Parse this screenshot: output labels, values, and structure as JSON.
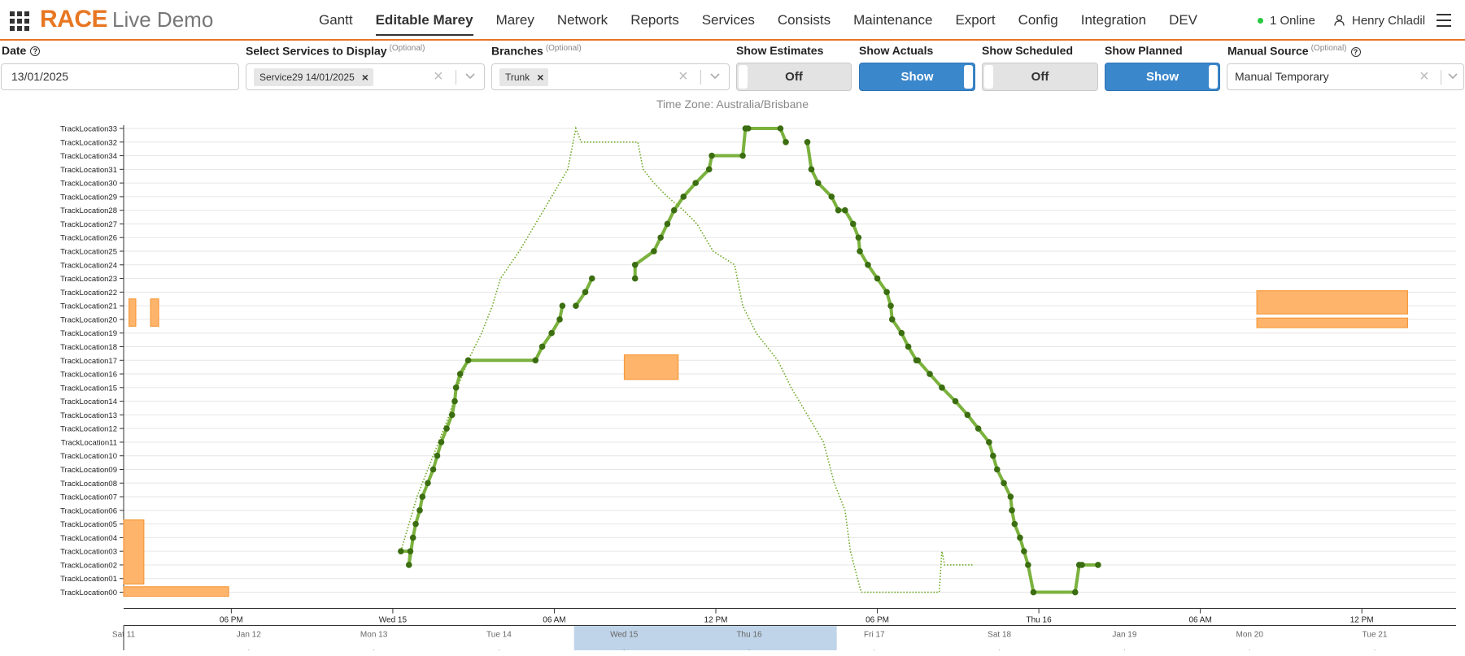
{
  "header": {
    "brand_main": "RACE",
    "brand_sub": "Live Demo",
    "nav": [
      {
        "label": "Gantt",
        "active": false
      },
      {
        "label": "Editable Marey",
        "active": true
      },
      {
        "label": "Marey",
        "active": false
      },
      {
        "label": "Network",
        "active": false
      },
      {
        "label": "Reports",
        "active": false
      },
      {
        "label": "Services",
        "active": false
      },
      {
        "label": "Consists",
        "active": false
      },
      {
        "label": "Maintenance",
        "active": false
      },
      {
        "label": "Export",
        "active": false
      },
      {
        "label": "Config",
        "active": false
      },
      {
        "label": "Integration",
        "active": false
      },
      {
        "label": "DEV",
        "active": false
      }
    ],
    "online_text": "1 Online",
    "user_name": "Henry Chladil",
    "accent_color": "#e87722"
  },
  "filters": {
    "date": {
      "label": "Date",
      "value": "13/01/2025"
    },
    "services": {
      "label": "Select Services to Display",
      "optional": "(Optional)",
      "chip": "Service29 14/01/2025"
    },
    "branches": {
      "label": "Branches",
      "optional": "(Optional)",
      "chip": "Trunk"
    },
    "estimates": {
      "label": "Show Estimates",
      "value": "Off"
    },
    "actuals": {
      "label": "Show Actuals",
      "value": "Show"
    },
    "scheduled": {
      "label": "Show Scheduled",
      "value": "Off"
    },
    "planned": {
      "label": "Show Planned",
      "value": "Show"
    },
    "manual_source": {
      "label": "Manual Source",
      "optional": "(Optional)",
      "value": "Manual Temporary"
    }
  },
  "timezone": "Time Zone: Australia/Brisbane",
  "chart_data": {
    "type": "line",
    "y_locations": [
      "TrackLocation00",
      "TrackLocation01",
      "TrackLocation02",
      "TrackLocation03",
      "TrackLocation04",
      "TrackLocation05",
      "TrackLocation06",
      "TrackLocation07",
      "TrackLocation08",
      "TrackLocation09",
      "TrackLocation10",
      "TrackLocation11",
      "TrackLocation12",
      "TrackLocation13",
      "TrackLocation14",
      "TrackLocation15",
      "TrackLocation16",
      "TrackLocation17",
      "TrackLocation18",
      "TrackLocation19",
      "TrackLocation20",
      "TrackLocation21",
      "TrackLocation22",
      "TrackLocation23",
      "TrackLocation24",
      "TrackLocation25",
      "TrackLocation26",
      "TrackLocation27",
      "TrackLocation28",
      "TrackLocation29",
      "TrackLocation30",
      "TrackLocation31",
      "TrackLocation34",
      "TrackLocation32",
      "TrackLocation33"
    ],
    "x_axis_primary": {
      "ticks": [
        "06 PM",
        "Wed 15",
        "06 AM",
        "12 PM",
        "06 PM",
        "Thu 16",
        "06 AM",
        "12 PM"
      ],
      "hours": [
        18,
        24,
        30,
        36,
        42,
        48,
        54,
        60
      ]
    },
    "x_axis_overview": {
      "ticks": [
        "Sat 11",
        "Jan 12",
        "Mon 13",
        "Tue 14",
        "Wed 15",
        "Thu 16",
        "Fri 17",
        "Sat 18",
        "Jan 19",
        "Mon 20",
        "Tue 21"
      ],
      "days": [
        0,
        1,
        2,
        3,
        4,
        5,
        6,
        7,
        8,
        9,
        10
      ],
      "brush_days": [
        3.6,
        5.7
      ]
    },
    "x_domain_hours": [
      14,
      63.5
    ],
    "x_axis_reference": "hours from 14/01/2025 00:00",
    "colors": {
      "actual": "#7bb23e",
      "actual_point": "#3b6d11",
      "planned": "#6aa61f",
      "block_fill": "#ffb064",
      "block_stroke": "#f59a3b",
      "brush": "#b8cfe6"
    },
    "series": [
      {
        "name": "Actual",
        "segments": [
          [
            [
              24.3,
              3
            ],
            [
              24.65,
              3
            ],
            [
              24.6,
              2
            ],
            [
              24.75,
              4
            ],
            [
              24.85,
              5
            ],
            [
              25.0,
              6
            ],
            [
              25.1,
              7
            ],
            [
              25.3,
              8
            ],
            [
              25.5,
              9
            ],
            [
              25.65,
              10
            ],
            [
              25.8,
              11
            ],
            [
              26.0,
              12
            ],
            [
              26.2,
              13
            ],
            [
              26.3,
              14
            ],
            [
              26.35,
              15
            ],
            [
              26.5,
              16
            ],
            [
              26.8,
              17
            ],
            [
              29.3,
              17
            ],
            [
              29.55,
              18
            ],
            [
              29.9,
              19
            ],
            [
              30.2,
              20
            ],
            [
              30.3,
              21
            ]
          ],
          [
            [
              30.8,
              21
            ],
            [
              31.15,
              22
            ],
            [
              31.4,
              23
            ]
          ],
          [
            [
              33.0,
              23
            ],
            [
              33.0,
              24
            ],
            [
              33.7,
              25
            ],
            [
              33.95,
              26
            ],
            [
              34.2,
              27
            ],
            [
              34.45,
              28
            ],
            [
              34.8,
              29
            ],
            [
              35.25,
              30
            ],
            [
              35.75,
              31
            ],
            [
              35.85,
              32
            ],
            [
              37.0,
              32
            ],
            [
              37.1,
              34
            ],
            [
              37.2,
              34
            ],
            [
              38.4,
              34
            ],
            [
              38.6,
              33
            ]
          ],
          [
            [
              39.4,
              33
            ],
            [
              39.55,
              31
            ],
            [
              39.8,
              30
            ],
            [
              40.3,
              29
            ],
            [
              40.55,
              28
            ],
            [
              40.8,
              28
            ],
            [
              41.1,
              27
            ],
            [
              41.3,
              26
            ],
            [
              41.35,
              25
            ],
            [
              41.65,
              24
            ],
            [
              42.0,
              23
            ],
            [
              42.35,
              22
            ],
            [
              42.5,
              21
            ],
            [
              42.55,
              20
            ],
            [
              42.9,
              19
            ],
            [
              43.15,
              18
            ],
            [
              43.45,
              17
            ],
            [
              43.5,
              17
            ],
            [
              43.95,
              16
            ],
            [
              44.4,
              15
            ],
            [
              44.9,
              14
            ],
            [
              45.35,
              13
            ],
            [
              45.75,
              12
            ],
            [
              46.15,
              11
            ],
            [
              46.3,
              10
            ],
            [
              46.45,
              9
            ],
            [
              46.7,
              8
            ],
            [
              46.95,
              7
            ],
            [
              47.0,
              6
            ],
            [
              47.1,
              5
            ],
            [
              47.3,
              4
            ],
            [
              47.45,
              3
            ],
            [
              47.6,
              2
            ],
            [
              47.8,
              0
            ],
            [
              49.35,
              0
            ],
            [
              49.5,
              2
            ],
            [
              49.6,
              2
            ],
            [
              50.2,
              2
            ]
          ]
        ]
      },
      {
        "name": "Planned",
        "points": [
          [
            24.3,
            3
          ],
          [
            24.6,
            5
          ],
          [
            24.9,
            7
          ],
          [
            25.3,
            9
          ],
          [
            25.7,
            11
          ],
          [
            26.1,
            13
          ],
          [
            26.4,
            15
          ],
          [
            26.8,
            17
          ],
          [
            27.3,
            19
          ],
          [
            27.7,
            21
          ],
          [
            28.0,
            23
          ],
          [
            28.7,
            25
          ],
          [
            29.3,
            27
          ],
          [
            29.9,
            29
          ],
          [
            30.5,
            31
          ],
          [
            30.8,
            34
          ],
          [
            31.0,
            33
          ],
          [
            33.1,
            33
          ],
          [
            33.3,
            31
          ],
          [
            33.7,
            30
          ],
          [
            34.2,
            29
          ],
          [
            34.8,
            28
          ],
          [
            35.3,
            27
          ],
          [
            35.9,
            25
          ],
          [
            36.7,
            24
          ],
          [
            37.0,
            21
          ],
          [
            37.5,
            19
          ],
          [
            38.3,
            17
          ],
          [
            38.8,
            15
          ],
          [
            39.4,
            13
          ],
          [
            40.0,
            11
          ],
          [
            40.4,
            8
          ],
          [
            40.8,
            6
          ],
          [
            41.0,
            3
          ],
          [
            41.4,
            0
          ],
          [
            44.3,
            0
          ],
          [
            44.4,
            3
          ],
          [
            44.5,
            2
          ],
          [
            45.6,
            2
          ]
        ]
      }
    ],
    "blocks": [
      {
        "x0": 14.2,
        "x1": 14.45,
        "y0": 19.5,
        "y1": 21.5
      },
      {
        "x0": 15.0,
        "x1": 15.3,
        "y0": 19.5,
        "y1": 21.5
      },
      {
        "x0": 14.0,
        "x1": 14.75,
        "y0": 0.6,
        "y1": 5.3
      },
      {
        "x0": 14.0,
        "x1": 17.9,
        "y0": -0.3,
        "y1": 0.4
      },
      {
        "x0": 32.6,
        "x1": 34.6,
        "y0": 15.6,
        "y1": 17.4
      },
      {
        "x0": 56.1,
        "x1": 61.7,
        "y0": 19.4,
        "y1": 20.1
      },
      {
        "x0": 56.1,
        "x1": 61.7,
        "y0": 20.4,
        "y1": 22.1
      }
    ]
  }
}
